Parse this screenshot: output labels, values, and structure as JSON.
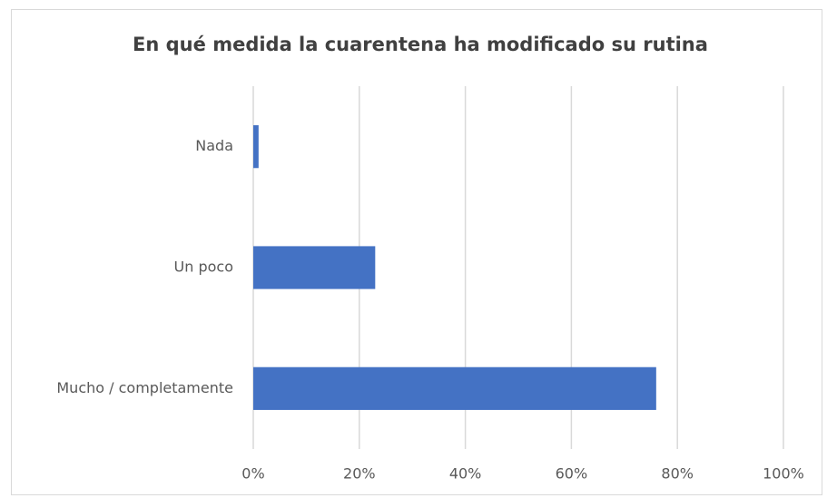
{
  "chart_data": {
    "type": "bar",
    "orientation": "horizontal",
    "title": "En qué medida la cuarentena ha modificado su rutina",
    "categories": [
      "Nada",
      "Un poco",
      "Mucho / completamente"
    ],
    "values": [
      1,
      23,
      76
    ],
    "color": "#4472c4",
    "xlim": [
      0,
      100
    ],
    "xticks": [
      {
        "value": 0,
        "label": "0%"
      },
      {
        "value": 20,
        "label": "20%"
      },
      {
        "value": 40,
        "label": "40%"
      },
      {
        "value": 60,
        "label": "60%"
      },
      {
        "value": 80,
        "label": "80%"
      },
      {
        "value": 100,
        "label": "100%"
      }
    ],
    "grid": true
  }
}
